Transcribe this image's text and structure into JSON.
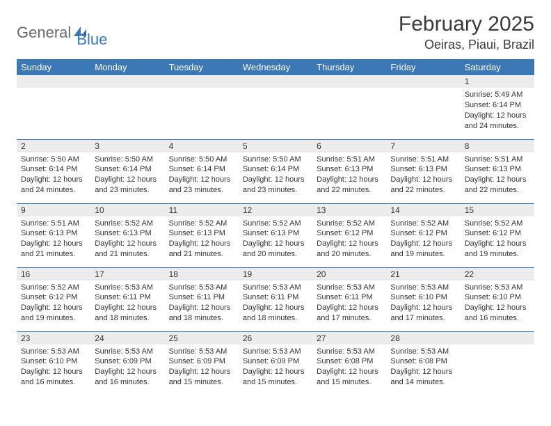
{
  "brand": {
    "text1": "General",
    "text2": "Blue",
    "color1": "#6a6a6a",
    "color2": "#3b78b5"
  },
  "title": "February 2025",
  "location": "Oeiras, Piaui, Brazil",
  "colors": {
    "header_bg": "#3b78b5",
    "header_fg": "#ffffff",
    "row_divider": "#3b78b5",
    "daynum_bg": "#ececec",
    "page_bg": "#ffffff",
    "text": "#333333"
  },
  "fonts": {
    "title_size": 30,
    "location_size": 18,
    "weekday_size": 13,
    "daynum_size": 12,
    "body_size": 11
  },
  "weekdays": [
    "Sunday",
    "Monday",
    "Tuesday",
    "Wednesday",
    "Thursday",
    "Friday",
    "Saturday"
  ],
  "weeks": [
    [
      {
        "n": "",
        "sunrise": "",
        "sunset": "",
        "daylight": ""
      },
      {
        "n": "",
        "sunrise": "",
        "sunset": "",
        "daylight": ""
      },
      {
        "n": "",
        "sunrise": "",
        "sunset": "",
        "daylight": ""
      },
      {
        "n": "",
        "sunrise": "",
        "sunset": "",
        "daylight": ""
      },
      {
        "n": "",
        "sunrise": "",
        "sunset": "",
        "daylight": ""
      },
      {
        "n": "",
        "sunrise": "",
        "sunset": "",
        "daylight": ""
      },
      {
        "n": "1",
        "sunrise": "Sunrise: 5:49 AM",
        "sunset": "Sunset: 6:14 PM",
        "daylight": "Daylight: 12 hours and 24 minutes."
      }
    ],
    [
      {
        "n": "2",
        "sunrise": "Sunrise: 5:50 AM",
        "sunset": "Sunset: 6:14 PM",
        "daylight": "Daylight: 12 hours and 24 minutes."
      },
      {
        "n": "3",
        "sunrise": "Sunrise: 5:50 AM",
        "sunset": "Sunset: 6:14 PM",
        "daylight": "Daylight: 12 hours and 23 minutes."
      },
      {
        "n": "4",
        "sunrise": "Sunrise: 5:50 AM",
        "sunset": "Sunset: 6:14 PM",
        "daylight": "Daylight: 12 hours and 23 minutes."
      },
      {
        "n": "5",
        "sunrise": "Sunrise: 5:50 AM",
        "sunset": "Sunset: 6:14 PM",
        "daylight": "Daylight: 12 hours and 23 minutes."
      },
      {
        "n": "6",
        "sunrise": "Sunrise: 5:51 AM",
        "sunset": "Sunset: 6:13 PM",
        "daylight": "Daylight: 12 hours and 22 minutes."
      },
      {
        "n": "7",
        "sunrise": "Sunrise: 5:51 AM",
        "sunset": "Sunset: 6:13 PM",
        "daylight": "Daylight: 12 hours and 22 minutes."
      },
      {
        "n": "8",
        "sunrise": "Sunrise: 5:51 AM",
        "sunset": "Sunset: 6:13 PM",
        "daylight": "Daylight: 12 hours and 22 minutes."
      }
    ],
    [
      {
        "n": "9",
        "sunrise": "Sunrise: 5:51 AM",
        "sunset": "Sunset: 6:13 PM",
        "daylight": "Daylight: 12 hours and 21 minutes."
      },
      {
        "n": "10",
        "sunrise": "Sunrise: 5:52 AM",
        "sunset": "Sunset: 6:13 PM",
        "daylight": "Daylight: 12 hours and 21 minutes."
      },
      {
        "n": "11",
        "sunrise": "Sunrise: 5:52 AM",
        "sunset": "Sunset: 6:13 PM",
        "daylight": "Daylight: 12 hours and 21 minutes."
      },
      {
        "n": "12",
        "sunrise": "Sunrise: 5:52 AM",
        "sunset": "Sunset: 6:13 PM",
        "daylight": "Daylight: 12 hours and 20 minutes."
      },
      {
        "n": "13",
        "sunrise": "Sunrise: 5:52 AM",
        "sunset": "Sunset: 6:12 PM",
        "daylight": "Daylight: 12 hours and 20 minutes."
      },
      {
        "n": "14",
        "sunrise": "Sunrise: 5:52 AM",
        "sunset": "Sunset: 6:12 PM",
        "daylight": "Daylight: 12 hours and 19 minutes."
      },
      {
        "n": "15",
        "sunrise": "Sunrise: 5:52 AM",
        "sunset": "Sunset: 6:12 PM",
        "daylight": "Daylight: 12 hours and 19 minutes."
      }
    ],
    [
      {
        "n": "16",
        "sunrise": "Sunrise: 5:52 AM",
        "sunset": "Sunset: 6:12 PM",
        "daylight": "Daylight: 12 hours and 19 minutes."
      },
      {
        "n": "17",
        "sunrise": "Sunrise: 5:53 AM",
        "sunset": "Sunset: 6:11 PM",
        "daylight": "Daylight: 12 hours and 18 minutes."
      },
      {
        "n": "18",
        "sunrise": "Sunrise: 5:53 AM",
        "sunset": "Sunset: 6:11 PM",
        "daylight": "Daylight: 12 hours and 18 minutes."
      },
      {
        "n": "19",
        "sunrise": "Sunrise: 5:53 AM",
        "sunset": "Sunset: 6:11 PM",
        "daylight": "Daylight: 12 hours and 18 minutes."
      },
      {
        "n": "20",
        "sunrise": "Sunrise: 5:53 AM",
        "sunset": "Sunset: 6:11 PM",
        "daylight": "Daylight: 12 hours and 17 minutes."
      },
      {
        "n": "21",
        "sunrise": "Sunrise: 5:53 AM",
        "sunset": "Sunset: 6:10 PM",
        "daylight": "Daylight: 12 hours and 17 minutes."
      },
      {
        "n": "22",
        "sunrise": "Sunrise: 5:53 AM",
        "sunset": "Sunset: 6:10 PM",
        "daylight": "Daylight: 12 hours and 16 minutes."
      }
    ],
    [
      {
        "n": "23",
        "sunrise": "Sunrise: 5:53 AM",
        "sunset": "Sunset: 6:10 PM",
        "daylight": "Daylight: 12 hours and 16 minutes."
      },
      {
        "n": "24",
        "sunrise": "Sunrise: 5:53 AM",
        "sunset": "Sunset: 6:09 PM",
        "daylight": "Daylight: 12 hours and 16 minutes."
      },
      {
        "n": "25",
        "sunrise": "Sunrise: 5:53 AM",
        "sunset": "Sunset: 6:09 PM",
        "daylight": "Daylight: 12 hours and 15 minutes."
      },
      {
        "n": "26",
        "sunrise": "Sunrise: 5:53 AM",
        "sunset": "Sunset: 6:09 PM",
        "daylight": "Daylight: 12 hours and 15 minutes."
      },
      {
        "n": "27",
        "sunrise": "Sunrise: 5:53 AM",
        "sunset": "Sunset: 6:08 PM",
        "daylight": "Daylight: 12 hours and 15 minutes."
      },
      {
        "n": "28",
        "sunrise": "Sunrise: 5:53 AM",
        "sunset": "Sunset: 6:08 PM",
        "daylight": "Daylight: 12 hours and 14 minutes."
      },
      {
        "n": "",
        "sunrise": "",
        "sunset": "",
        "daylight": ""
      }
    ]
  ]
}
